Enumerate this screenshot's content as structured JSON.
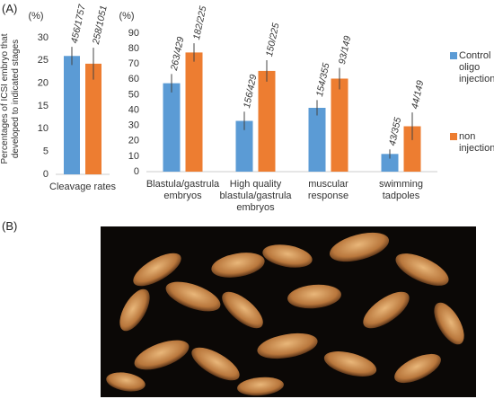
{
  "panel_labels": {
    "a": "(A)",
    "b": "(B)"
  },
  "ylabel": "Percentages of ICSI embryo that developed to indicated stages",
  "chart_data": [
    {
      "type": "bar",
      "y_unit": "(%)",
      "categories": [
        "Cleavage rates"
      ],
      "series": [
        {
          "name": "Control oligo injection",
          "color": "#5b9bd5",
          "values": [
            26
          ],
          "errors": [
            2
          ],
          "count_labels": [
            "456/1757"
          ]
        },
        {
          "name": "non injection",
          "color": "#ed7d31",
          "values": [
            24.3
          ],
          "errors": [
            3.5
          ],
          "count_labels": [
            "258/1051"
          ]
        }
      ],
      "ylim": [
        0,
        30
      ],
      "yticks": [
        0,
        5,
        10,
        15,
        20,
        25,
        30
      ]
    },
    {
      "type": "bar",
      "y_unit": "(%)",
      "categories": [
        "Blastula/gastrula embryos",
        "High quality blastula/gastrula embryos",
        "muscular response",
        "swimming tadpoles"
      ],
      "series": [
        {
          "name": "Control oligo injection",
          "color": "#5b9bd5",
          "values": [
            57.5,
            33,
            41.5,
            11.5
          ],
          "errors": [
            6,
            6,
            5,
            3
          ],
          "count_labels": [
            "263/429",
            "156/429",
            "154/355",
            "43/355"
          ]
        },
        {
          "name": "non injection",
          "color": "#ed7d31",
          "values": [
            77.5,
            65.5,
            60.5,
            29.5
          ],
          "errors": [
            6,
            7,
            7,
            9
          ],
          "count_labels": [
            "182/225",
            "150/225",
            "93/149",
            "44/149"
          ]
        }
      ],
      "ylim": [
        0,
        90
      ],
      "yticks": [
        0,
        10,
        20,
        30,
        40,
        50,
        60,
        70,
        80,
        90
      ],
      "legend": "right"
    }
  ]
}
